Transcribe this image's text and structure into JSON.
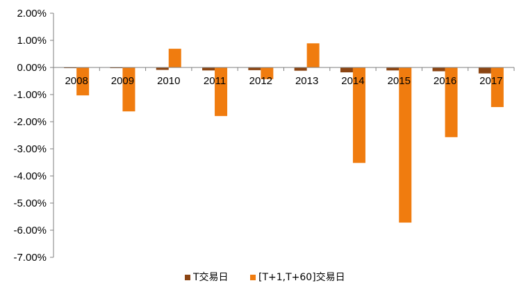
{
  "chart_data": {
    "type": "bar",
    "categories": [
      "2008",
      "2009",
      "2010",
      "2011",
      "2012",
      "2013",
      "2014",
      "2015",
      "2016",
      "2017"
    ],
    "series": [
      {
        "name": "T交易日",
        "color": "#8B4513",
        "values": [
          -0.02,
          -0.02,
          -0.09,
          -0.11,
          -0.1,
          -0.12,
          -0.18,
          -0.11,
          -0.14,
          -0.22
        ]
      },
      {
        "name": "[T+1,T+60]交易日",
        "color": "#F07C0F",
        "values": [
          -1.03,
          -1.62,
          0.69,
          -1.79,
          -0.43,
          0.89,
          -3.52,
          -5.72,
          -2.57,
          -1.46
        ]
      }
    ],
    "yticks": [
      "2.00%",
      "1.00%",
      "0.00%",
      "-1.00%",
      "-2.00%",
      "-3.00%",
      "-4.00%",
      "-5.00%",
      "-6.00%",
      "-7.00%"
    ],
    "ylim": [
      -7,
      2
    ],
    "y_unit": "%",
    "legend_position": "bottom",
    "grid": false
  }
}
